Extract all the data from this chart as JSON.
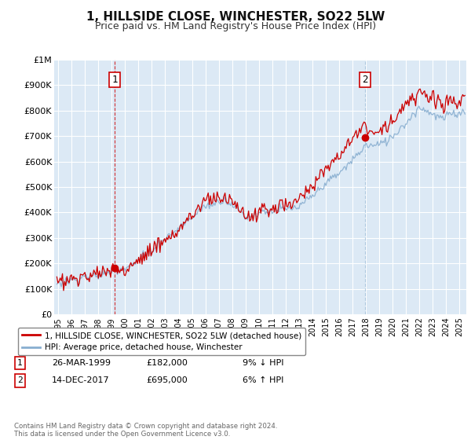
{
  "title": "1, HILLSIDE CLOSE, WINCHESTER, SO22 5LW",
  "subtitle": "Price paid vs. HM Land Registry's House Price Index (HPI)",
  "title_fontsize": 11,
  "subtitle_fontsize": 9,
  "ylabel_ticks": [
    "£0",
    "£100K",
    "£200K",
    "£300K",
    "£400K",
    "£500K",
    "£600K",
    "£700K",
    "£800K",
    "£900K",
    "£1M"
  ],
  "ytick_vals": [
    0,
    100000,
    200000,
    300000,
    400000,
    500000,
    600000,
    700000,
    800000,
    900000,
    1000000
  ],
  "ylim": [
    0,
    1000000
  ],
  "xlim_start": 1994.7,
  "xlim_end": 2025.5,
  "plot_bg_color": "#dce9f5",
  "grid_color": "#ffffff",
  "line1_color": "#cc0000",
  "line2_color": "#88aed0",
  "vline1_color": "#cc0000",
  "vline1_style": "--",
  "vline2_color": "#88aed0",
  "vline2_style": "--",
  "purchase1_x": 1999.23,
  "purchase1_y": 182000,
  "purchase2_x": 2017.95,
  "purchase2_y": 695000,
  "legend_line1": "1, HILLSIDE CLOSE, WINCHESTER, SO22 5LW (detached house)",
  "legend_line2": "HPI: Average price, detached house, Winchester",
  "annotation1_label": "1",
  "annotation2_label": "2",
  "table_row1": [
    "1",
    "26-MAR-1999",
    "£182,000",
    "9% ↓ HPI"
  ],
  "table_row2": [
    "2",
    "14-DEC-2017",
    "£695,000",
    "6% ↑ HPI"
  ],
  "footer": "Contains HM Land Registry data © Crown copyright and database right 2024.\nThis data is licensed under the Open Government Licence v3.0.",
  "xtick_years": [
    1995,
    1996,
    1997,
    1998,
    1999,
    2000,
    2001,
    2002,
    2003,
    2004,
    2005,
    2006,
    2007,
    2008,
    2009,
    2010,
    2011,
    2012,
    2013,
    2014,
    2015,
    2016,
    2017,
    2018,
    2019,
    2020,
    2021,
    2022,
    2023,
    2024,
    2025
  ]
}
